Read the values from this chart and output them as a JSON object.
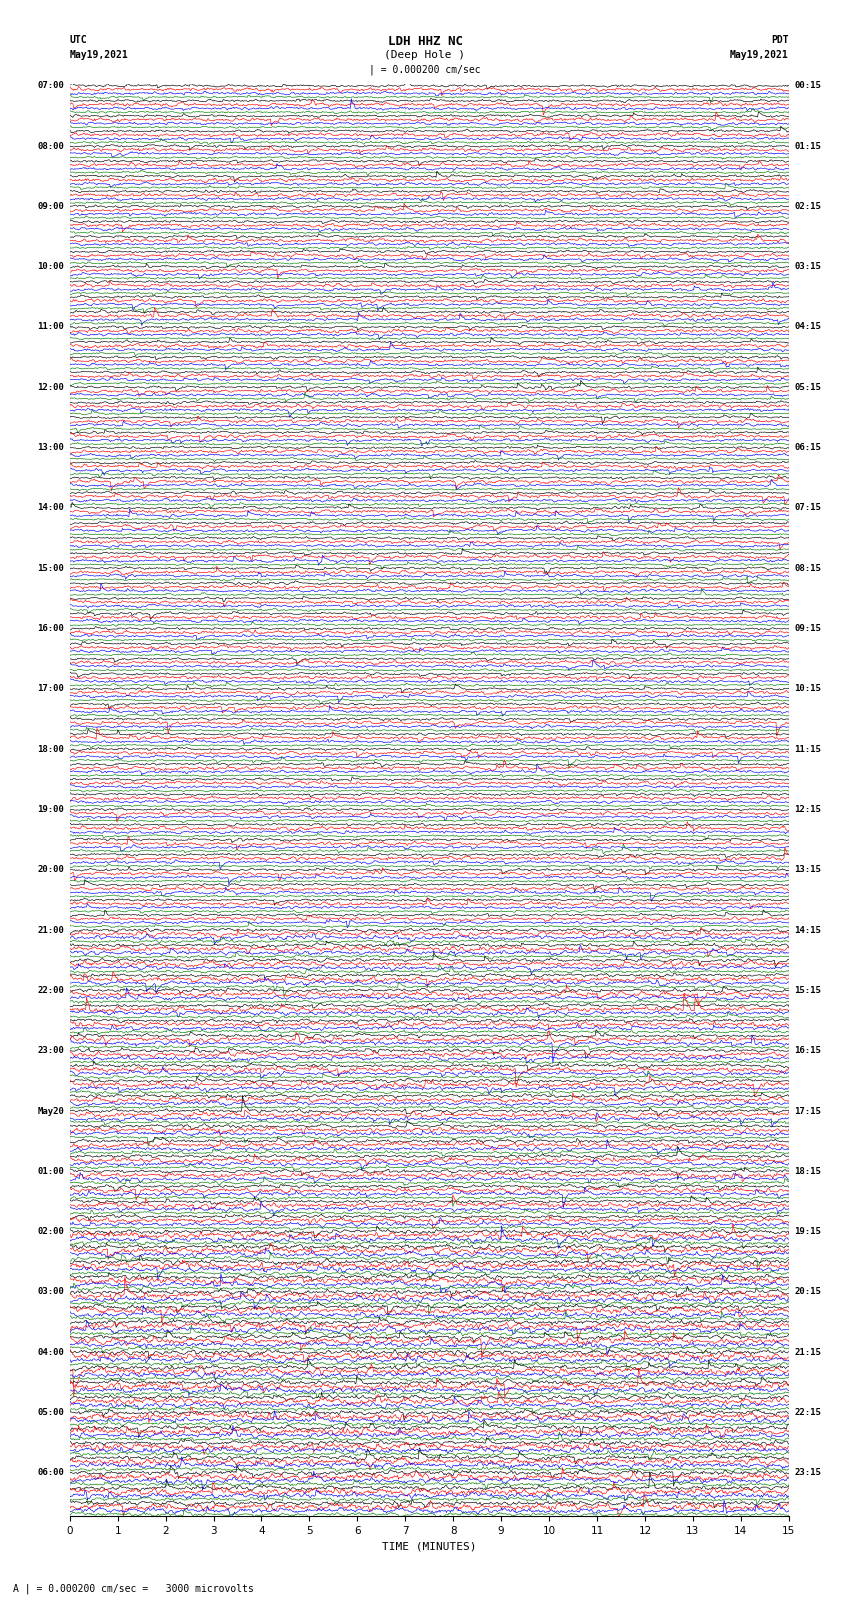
{
  "title_line1": "LDH HHZ NC",
  "title_line2": "(Deep Hole )",
  "scale_label": "| = 0.000200 cm/sec",
  "left_label_line1": "UTC",
  "left_label_line2": "May19,2021",
  "right_label_line1": "PDT",
  "right_label_line2": "May19,2021",
  "bottom_label": "TIME (MINUTES)",
  "bottom_note": "A | = 0.000200 cm/sec =   3000 microvolts",
  "utc_times": [
    "07:00",
    "",
    "",
    "",
    "08:00",
    "",
    "",
    "",
    "09:00",
    "",
    "",
    "",
    "10:00",
    "",
    "",
    "",
    "11:00",
    "",
    "",
    "",
    "12:00",
    "",
    "",
    "",
    "13:00",
    "",
    "",
    "",
    "14:00",
    "",
    "",
    "",
    "15:00",
    "",
    "",
    "",
    "16:00",
    "",
    "",
    "",
    "17:00",
    "",
    "",
    "",
    "18:00",
    "",
    "",
    "",
    "19:00",
    "",
    "",
    "",
    "20:00",
    "",
    "",
    "",
    "21:00",
    "",
    "",
    "",
    "22:00",
    "",
    "",
    "",
    "23:00",
    "",
    "",
    "",
    "May20",
    "",
    "",
    "",
    "01:00",
    "",
    "",
    "",
    "02:00",
    "",
    "",
    "",
    "03:00",
    "",
    "",
    "",
    "04:00",
    "",
    "",
    "",
    "05:00",
    "",
    "",
    "",
    "06:00",
    "",
    ""
  ],
  "pdt_times": [
    "00:15",
    "",
    "",
    "",
    "01:15",
    "",
    "",
    "",
    "02:15",
    "",
    "",
    "",
    "03:15",
    "",
    "",
    "",
    "04:15",
    "",
    "",
    "",
    "05:15",
    "",
    "",
    "",
    "06:15",
    "",
    "",
    "",
    "07:15",
    "",
    "",
    "",
    "08:15",
    "",
    "",
    "",
    "09:15",
    "",
    "",
    "",
    "10:15",
    "",
    "",
    "",
    "11:15",
    "",
    "",
    "",
    "12:15",
    "",
    "",
    "",
    "13:15",
    "",
    "",
    "",
    "14:15",
    "",
    "",
    "",
    "15:15",
    "",
    "",
    "",
    "16:15",
    "",
    "",
    "",
    "17:15",
    "",
    "",
    "",
    "18:15",
    "",
    "",
    "",
    "19:15",
    "",
    "",
    "",
    "20:15",
    "",
    "",
    "",
    "21:15",
    "",
    "",
    "",
    "22:15",
    "",
    "",
    "",
    "23:15",
    "",
    ""
  ],
  "row_colors": [
    "black",
    "red",
    "blue",
    "green"
  ],
  "x_ticks": [
    0,
    1,
    2,
    3,
    4,
    5,
    6,
    7,
    8,
    9,
    10,
    11,
    12,
    13,
    14,
    15
  ],
  "x_lim": [
    0,
    15
  ],
  "background_color": "white",
  "fig_width": 8.5,
  "fig_height": 16.13,
  "dpi": 100
}
